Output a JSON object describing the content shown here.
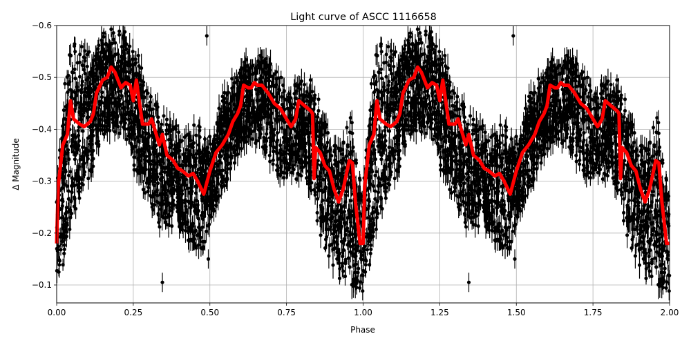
{
  "chart_data": {
    "type": "scatter",
    "title": "Light curve of ASCC 1116658",
    "xlabel": "Phase",
    "ylabel": "Δ Magnitude",
    "xlim": [
      0.0,
      2.0
    ],
    "ylim": [
      -0.6,
      -0.065
    ],
    "y_inverted": true,
    "grid": true,
    "legend": null,
    "x_ticks": [
      "0.00",
      "0.25",
      "0.50",
      "0.75",
      "1.00",
      "1.25",
      "1.50",
      "1.75",
      "2.00"
    ],
    "x_tick_values": [
      0.0,
      0.25,
      0.5,
      0.75,
      1.0,
      1.25,
      1.5,
      1.75,
      2.0
    ],
    "y_ticks": [
      "−0.6",
      "−0.5",
      "−0.4",
      "−0.3",
      "−0.2",
      "−0.1"
    ],
    "y_tick_values": [
      -0.6,
      -0.5,
      -0.4,
      -0.3,
      -0.2,
      -0.1
    ],
    "series": [
      {
        "name": "observations",
        "kind": "errorbar-scatter",
        "color": "#000000",
        "description": "Dense phase-folded photometry with error bars, repeated over two cycles; scatter spans roughly ±0.1 mag around the fitted curve",
        "envelope": {
          "phase": [
            0.0,
            0.02,
            0.05,
            0.08,
            0.12,
            0.15,
            0.18,
            0.22,
            0.26,
            0.3,
            0.34,
            0.38,
            0.42,
            0.46,
            0.48,
            0.5,
            0.55,
            0.6,
            0.65,
            0.7,
            0.75,
            0.8,
            0.84,
            0.88,
            0.92,
            0.96,
            1.0
          ],
          "upper": [
            -0.3,
            -0.5,
            -0.58,
            -0.58,
            -0.55,
            -0.6,
            -0.6,
            -0.6,
            -0.56,
            -0.48,
            -0.45,
            -0.42,
            -0.4,
            -0.42,
            -0.4,
            -0.4,
            -0.48,
            -0.54,
            -0.56,
            -0.55,
            -0.5,
            -0.5,
            -0.5,
            -0.42,
            -0.38,
            -0.45,
            -0.3
          ],
          "lower": [
            -0.07,
            -0.12,
            -0.2,
            -0.27,
            -0.3,
            -0.38,
            -0.37,
            -0.38,
            -0.3,
            -0.25,
            -0.2,
            -0.2,
            -0.17,
            -0.15,
            -0.14,
            -0.2,
            -0.28,
            -0.35,
            -0.36,
            -0.32,
            -0.28,
            -0.3,
            -0.22,
            -0.15,
            -0.1,
            -0.07,
            -0.07
          ]
        },
        "outliers": [
          {
            "phase": 0.345,
            "mag": -0.105
          },
          {
            "phase": 1.345,
            "mag": -0.105
          },
          {
            "phase": 0.495,
            "mag": -0.15
          },
          {
            "phase": 1.495,
            "mag": -0.15
          },
          {
            "phase": 0.49,
            "mag": -0.58
          },
          {
            "phase": 1.49,
            "mag": -0.58
          },
          {
            "phase": 0.79,
            "mag": -0.48
          },
          {
            "phase": 1.79,
            "mag": -0.48
          }
        ]
      },
      {
        "name": "binned mean",
        "kind": "line",
        "color": "#ff0000",
        "line_width": 5,
        "period_repeat": 2,
        "phase": [
          0.0,
          0.005,
          0.02,
          0.035,
          0.045,
          0.055,
          0.075,
          0.09,
          0.11,
          0.12,
          0.13,
          0.15,
          0.165,
          0.178,
          0.19,
          0.21,
          0.225,
          0.24,
          0.25,
          0.26,
          0.28,
          0.3,
          0.31,
          0.325,
          0.335,
          0.345,
          0.36,
          0.38,
          0.395,
          0.41,
          0.43,
          0.445,
          0.46,
          0.48,
          0.5,
          0.52,
          0.54,
          0.56,
          0.575,
          0.59,
          0.6,
          0.61,
          0.625,
          0.635,
          0.645,
          0.655,
          0.67,
          0.69,
          0.71,
          0.73,
          0.75,
          0.765,
          0.78,
          0.79,
          0.81,
          0.83,
          0.835,
          0.84,
          0.845,
          0.86,
          0.875,
          0.89,
          0.905,
          0.92,
          0.935,
          0.955,
          0.965,
          0.975,
          0.99,
          1.0
        ],
        "values": [
          -0.18,
          -0.29,
          -0.37,
          -0.39,
          -0.455,
          -0.42,
          -0.41,
          -0.405,
          -0.415,
          -0.43,
          -0.47,
          -0.495,
          -0.5,
          -0.52,
          -0.51,
          -0.48,
          -0.49,
          -0.485,
          -0.455,
          -0.495,
          -0.41,
          -0.41,
          -0.42,
          -0.39,
          -0.37,
          -0.39,
          -0.35,
          -0.34,
          -0.325,
          -0.32,
          -0.31,
          -0.315,
          -0.3,
          -0.275,
          -0.32,
          -0.355,
          -0.37,
          -0.39,
          -0.415,
          -0.43,
          -0.445,
          -0.485,
          -0.48,
          -0.48,
          -0.49,
          -0.485,
          -0.485,
          -0.47,
          -0.45,
          -0.44,
          -0.42,
          -0.405,
          -0.42,
          -0.455,
          -0.445,
          -0.435,
          -0.43,
          -0.305,
          -0.365,
          -0.355,
          -0.33,
          -0.32,
          -0.285,
          -0.26,
          -0.285,
          -0.34,
          -0.335,
          -0.26,
          -0.18,
          -0.18
        ]
      }
    ]
  },
  "colors": {
    "points": "#000000",
    "curve": "#ff0000",
    "grid": "#b0b0b0",
    "axes": "#000000",
    "background": "#ffffff"
  }
}
